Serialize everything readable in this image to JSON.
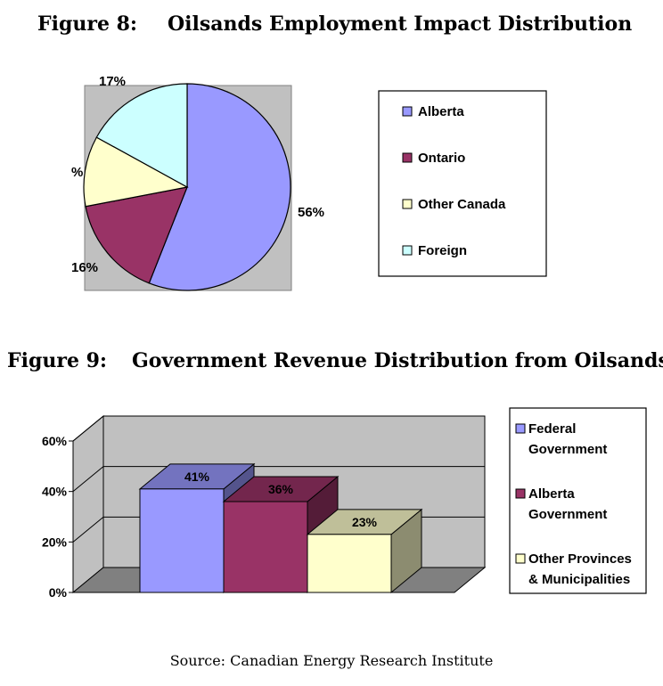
{
  "figure8": {
    "number": "Figure 8:",
    "title": "Oilsands Employment Impact Distribution",
    "chart_data": {
      "type": "pie",
      "categories": [
        "Alberta",
        "Ontario",
        "Other Canada",
        "Foreign"
      ],
      "values": [
        56,
        16,
        11,
        17
      ],
      "data_labels": [
        "56%",
        "16%",
        "%",
        "17%"
      ],
      "legend_placement": "right",
      "colors": [
        "#9999ff",
        "#993366",
        "#ffffcc",
        "#ccffff"
      ]
    }
  },
  "figure9": {
    "number": "Figure 9:",
    "title": "Government Revenue Distribution from Oilsands",
    "chart_data": {
      "type": "bar",
      "categories": [
        "Federal Government",
        "Alberta Government",
        "Other Provinces & Municipalities"
      ],
      "legend": [
        [
          "Federal",
          "Government"
        ],
        [
          "Alberta",
          "Government"
        ],
        [
          "Other Provinces",
          "& Municipalities"
        ]
      ],
      "values": [
        41,
        36,
        23
      ],
      "data_labels": [
        "41%",
        "36%",
        "23%"
      ],
      "ylim": [
        0,
        60
      ],
      "yticks": [
        "0%",
        "20%",
        "40%",
        "60%"
      ],
      "grid": true,
      "legend_placement": "right",
      "colors": [
        "#9999ff",
        "#993366",
        "#ffffcc"
      ]
    }
  },
  "source": "Source:  Canadian Energy Research Institute"
}
